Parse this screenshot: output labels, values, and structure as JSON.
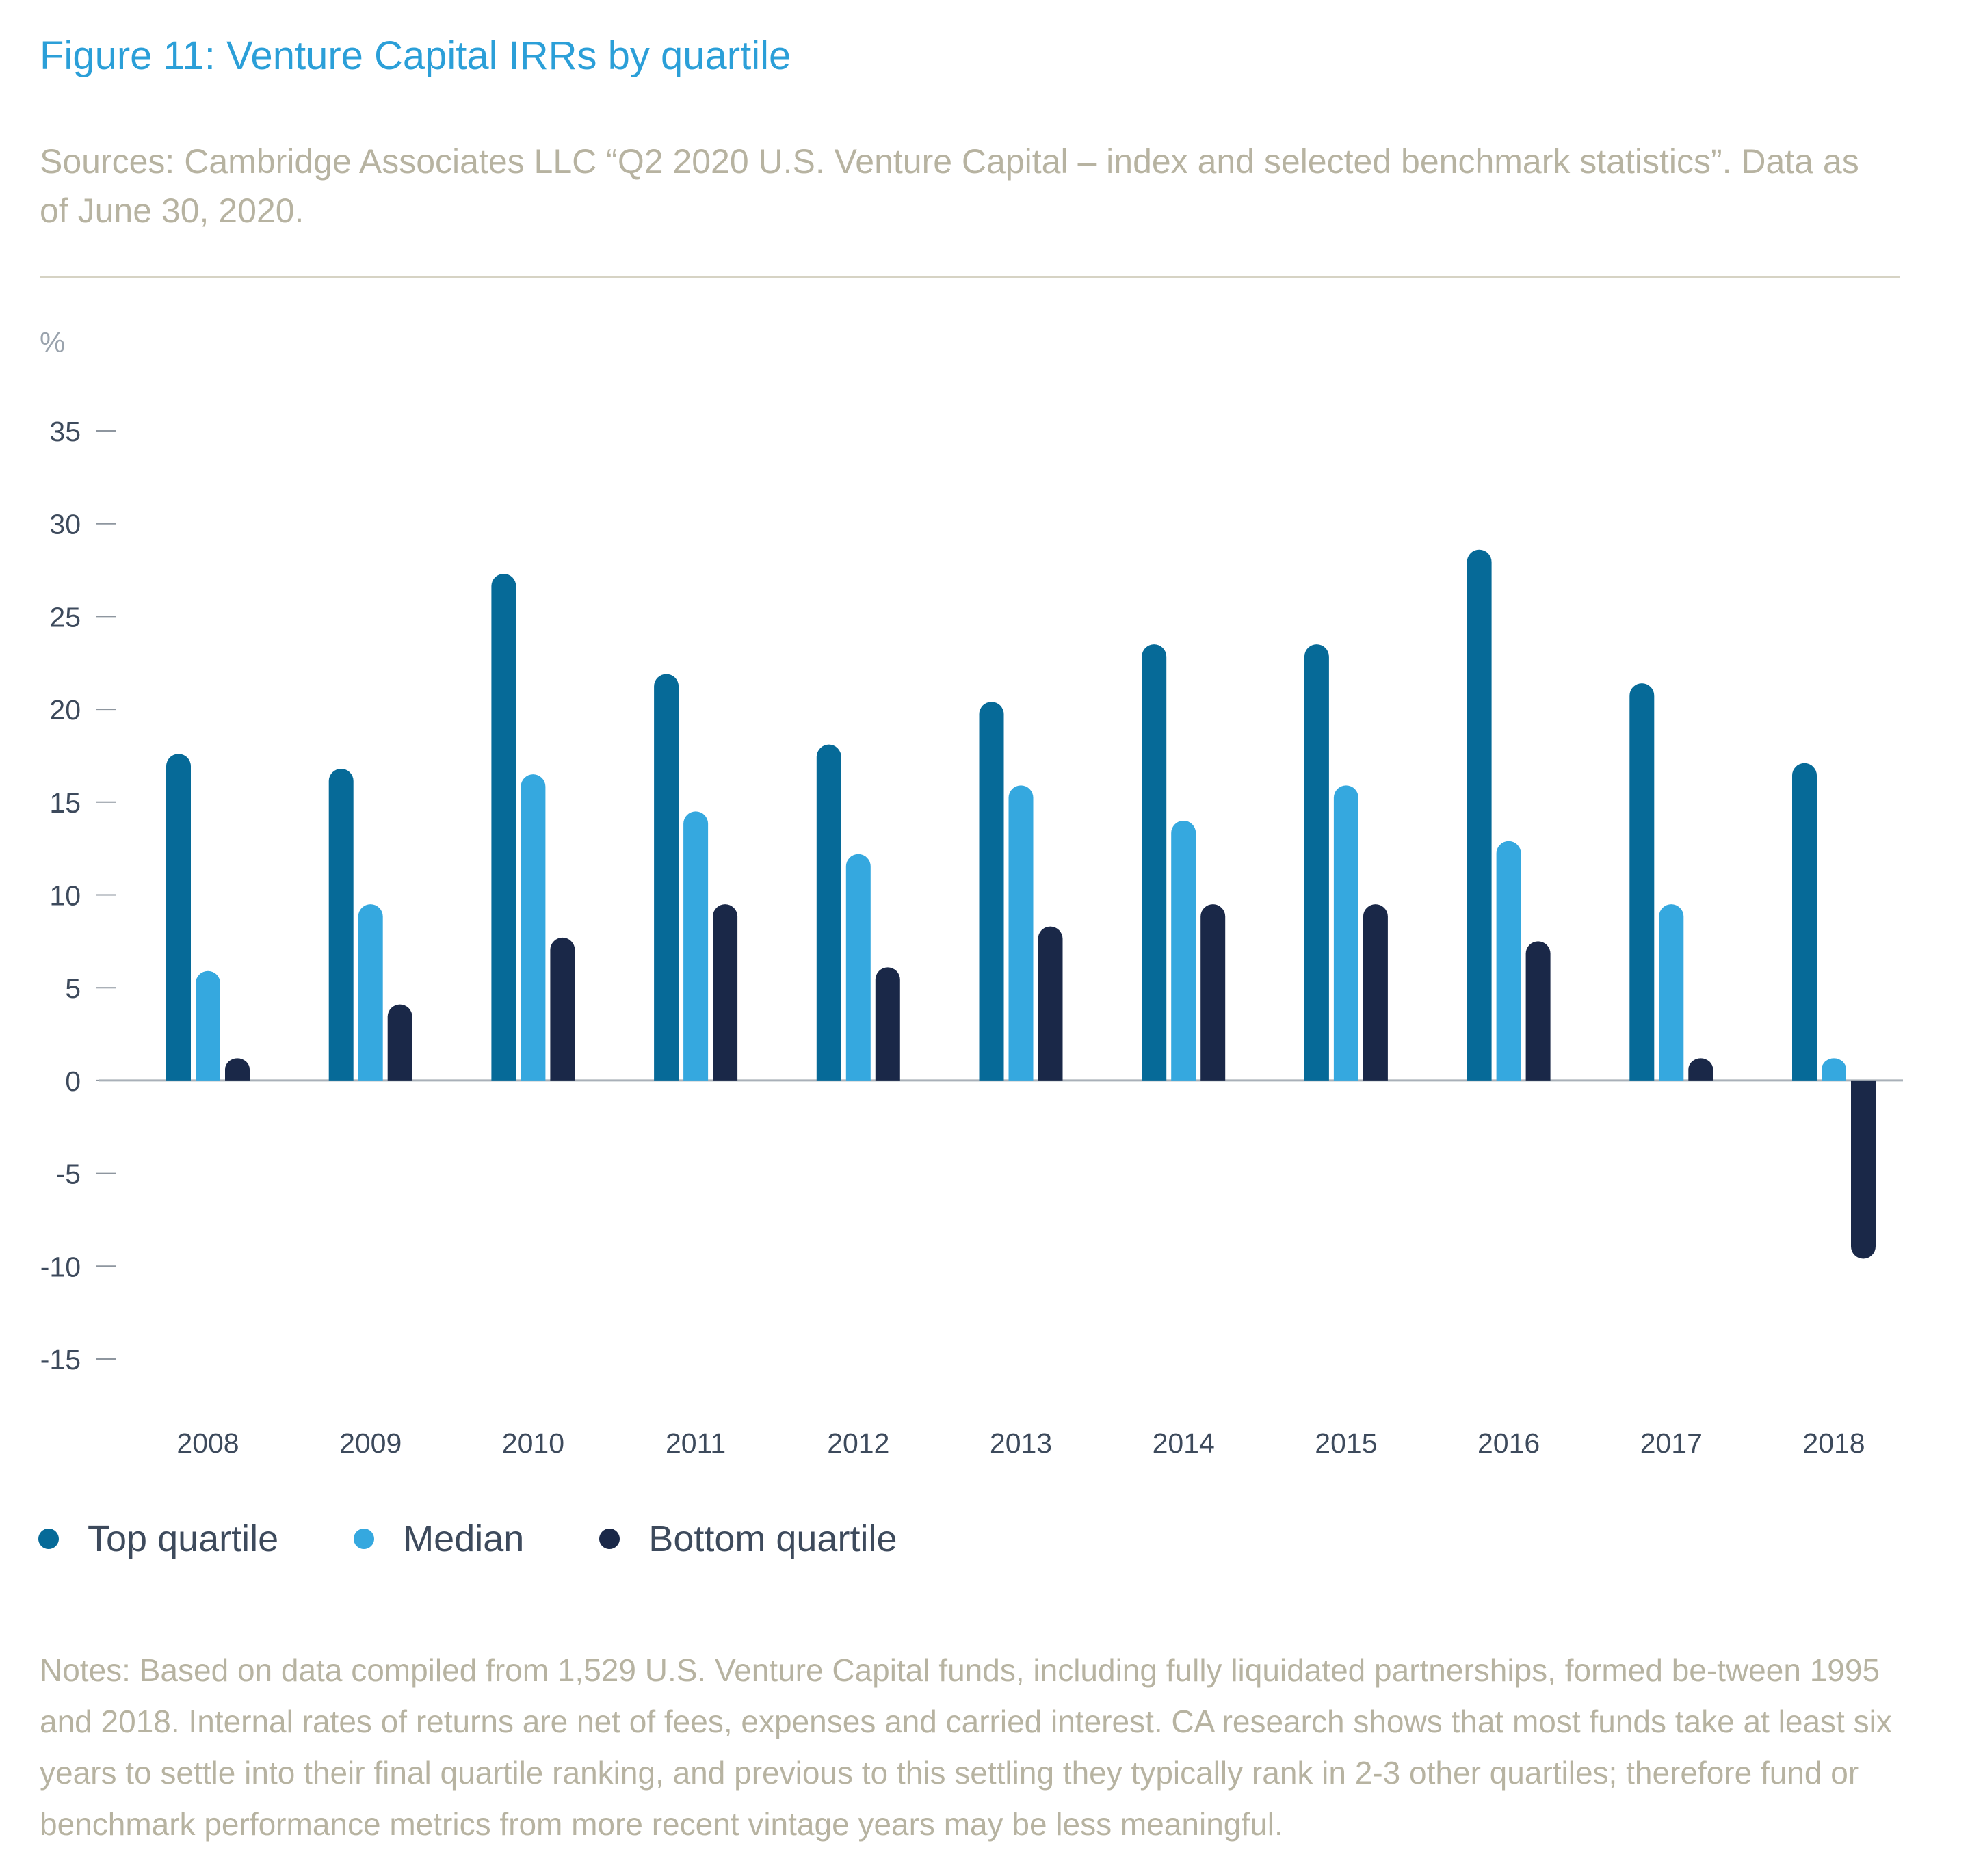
{
  "header": {
    "title": "Figure 11: Venture Capital IRRs by quartile",
    "source": "Sources: Cambridge Associates LLC “Q2 2020 U.S. Venture Capital – index and selected benchmark statistics”. Data as of June 30, 2020."
  },
  "chart_data": {
    "type": "bar",
    "title": "Figure 11: Venture Capital IRRs by quartile",
    "ylabel": "%",
    "xlabel": "",
    "ylim": [
      -15,
      35
    ],
    "yticks": [
      35,
      30,
      25,
      20,
      15,
      10,
      5,
      0,
      -5,
      -10,
      -15
    ],
    "grid": false,
    "legend_position": "bottom-left",
    "categories": [
      "2008",
      "2009",
      "2010",
      "2011",
      "2012",
      "2013",
      "2014",
      "2015",
      "2016",
      "2017",
      "2018"
    ],
    "series": [
      {
        "name": "Top quartile",
        "color": "#066a98",
        "values": [
          17.6,
          16.8,
          27.3,
          21.9,
          18.1,
          20.4,
          23.5,
          23.5,
          28.6,
          21.4,
          17.1
        ]
      },
      {
        "name": "Median",
        "color": "#35a8df",
        "values": [
          5.9,
          9.5,
          16.5,
          14.5,
          12.2,
          15.9,
          14.0,
          15.9,
          12.9,
          9.5,
          0.6
        ]
      },
      {
        "name": "Bottom quartile",
        "color": "#1a2848",
        "values": [
          0.6,
          4.1,
          7.7,
          9.5,
          6.1,
          8.3,
          9.5,
          9.5,
          7.5,
          0.6,
          -9.6
        ]
      }
    ]
  },
  "notes": "Notes: Based on data compiled from 1,529 U.S. Venture Capital funds, including fully liquidated partnerships, formed be-tween 1995 and 2018. Internal rates of returns are net of fees, expenses and carried interest. CA research shows that most funds take at least six years to settle into their final quartile ranking, and previous to this settling they typically rank in 2-3 other quartiles; therefore fund or benchmark performance metrics from more recent vintage years may be less meaningful."
}
